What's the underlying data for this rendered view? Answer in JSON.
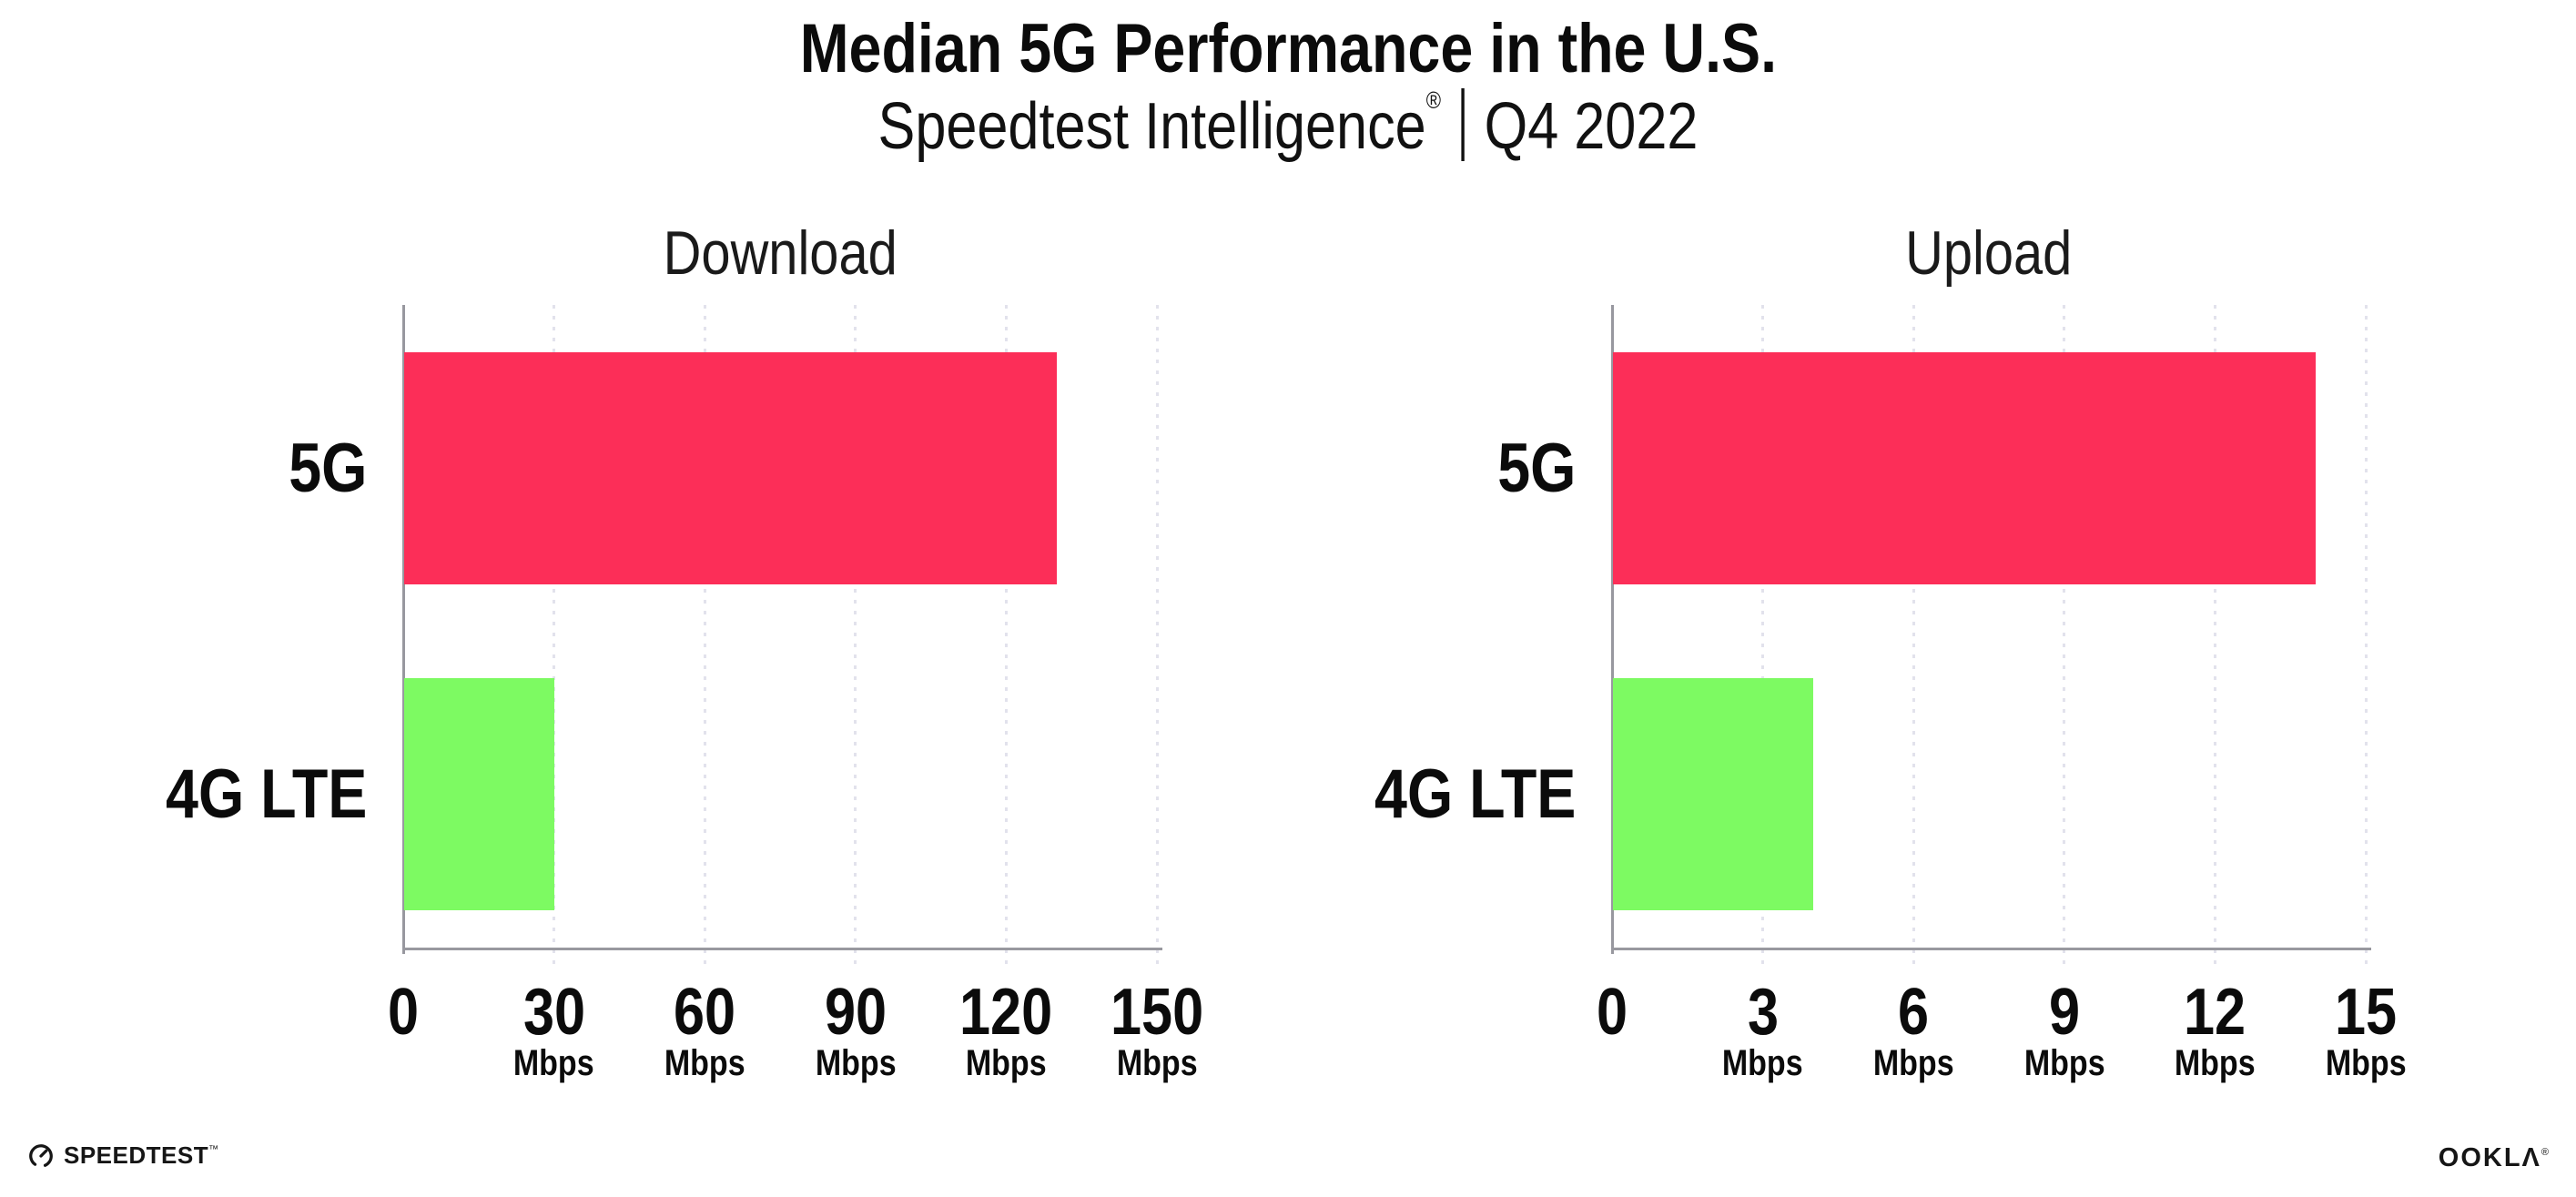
{
  "header": {
    "title": "Median 5G Performance in the U.S.",
    "subtitle_brand": "Speedtest Intelligence",
    "subtitle_reg": "®",
    "subtitle_period": "Q4 2022"
  },
  "colors": {
    "bar_5g": "#fc2e58",
    "bar_4g_lte": "#7dfa62",
    "axis": "#98989f",
    "grid_dot": "#e2e2ec",
    "text": "#0b0b0b"
  },
  "chart_data": [
    {
      "type": "bar",
      "orientation": "horizontal",
      "title": "Download",
      "categories": [
        "5G",
        "4G LTE"
      ],
      "values": [
        130,
        30
      ],
      "unit": "Mbps",
      "xlim": [
        0,
        150
      ],
      "xticks": [
        0,
        30,
        60,
        90,
        120,
        150
      ],
      "tick_unit_label": "Mbps",
      "bar_colors": [
        "#fc2e58",
        "#7dfa62"
      ],
      "grid": "dotted-vertical",
      "legend": "none"
    },
    {
      "type": "bar",
      "orientation": "horizontal",
      "title": "Upload",
      "categories": [
        "5G",
        "4G LTE"
      ],
      "values": [
        14,
        4
      ],
      "unit": "Mbps",
      "xlim": [
        0,
        15
      ],
      "xticks": [
        0,
        3,
        6,
        9,
        12,
        15
      ],
      "tick_unit_label": "Mbps",
      "bar_colors": [
        "#fc2e58",
        "#7dfa62"
      ],
      "grid": "dotted-vertical",
      "legend": "none"
    }
  ],
  "footer": {
    "speedtest_label": "SPEEDTEST",
    "speedtest_tm": "™",
    "ookla_label": "OOKLΛ",
    "ookla_reg": "®"
  }
}
